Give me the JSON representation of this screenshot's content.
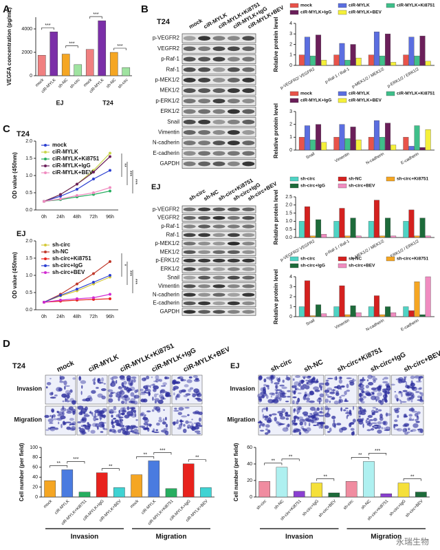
{
  "panel_labels": [
    "A",
    "B",
    "C",
    "D"
  ],
  "blots": [
    {
      "cell_line": "T24",
      "lanes": [
        "mock",
        "ciR-MYLK",
        "ciR-MYLK+Ki8751",
        "ciR-MYLK+IgG",
        "ciR-MYLK+BEV"
      ],
      "proteins": [
        "p-VEGFR2",
        "VEGFR2",
        "p-Raf-1",
        "Raf-1",
        "p-MEK1/2",
        "MEK1/2",
        "p-ERK1/2",
        "ERK1/2",
        "Snail",
        "Vimentin",
        "N-cadherin",
        "E-cadherin",
        "GAPDH"
      ]
    },
    {
      "cell_line": "EJ",
      "lanes": [
        "sh-circ",
        "sh-NC",
        "sh-circ+Ki8751",
        "sh-circ+IgG",
        "sh-circ+BEV"
      ],
      "proteins": [
        "p-VEGFR2",
        "VEGFR2",
        "p-Raf-1",
        "Raf-1",
        "p-MEK1/2",
        "MEK1/2",
        "p-ERK1/2",
        "ERK1/2",
        "Snail",
        "Vimentin",
        "N-cadherin",
        "E-cadherin",
        "GAPDH"
      ]
    }
  ],
  "assays": [
    {
      "cell_line": "T24",
      "lanes": [
        "mock",
        "ciR-MYLK",
        "ciR-MYLK+Ki8751",
        "ciR-MYLK+IgG",
        "ciR-MYLK+BEV"
      ],
      "rows": [
        "Invasion",
        "Migration"
      ]
    },
    {
      "cell_line": "EJ",
      "lanes": [
        "sh-circ",
        "sh-NC",
        "sh-circ+Ki8751",
        "sh-circ+IgG",
        "sh-circ+BEV"
      ],
      "rows": [
        "Invasion",
        "Migration"
      ]
    }
  ],
  "watermark": "永瑞生物",
  "chart_data": [
    {
      "type": "bar",
      "ylabel": "VEGFA concentration (pg/mL)",
      "categories": [
        "mock",
        "ciR-MYLK",
        "sh-NC",
        "sh-circ",
        "mock",
        "ciR-MYLK",
        "sh-NC",
        "sh-circ"
      ],
      "values": [
        1750,
        3750,
        1850,
        950,
        2250,
        4700,
        2000,
        700
      ],
      "colors": [
        "#f08080",
        "#7b2fa8",
        "#f5a623",
        "#9fe3a0",
        "#f08080",
        "#7b2fa8",
        "#f5a623",
        "#9fe3a0"
      ],
      "groups": [
        "EJ",
        "T24"
      ],
      "annotations": [
        "***",
        "***",
        "***",
        "***"
      ],
      "ylim": [
        0,
        5000
      ],
      "yticks": [
        0,
        2000,
        4000
      ]
    },
    {
      "type": "bar",
      "ylabel": "Relative protein level",
      "categories": [
        "p-VEGFR2/ VEGFR2",
        "p-Raf-1 / Raf-1",
        "p-MEK1/2 / MEK1/2",
        "p-ERK1/2 / ERK1/2"
      ],
      "series": [
        {
          "name": "mock",
          "color": "#e8534a",
          "values": [
            1.0,
            1.0,
            1.0,
            1.0
          ]
        },
        {
          "name": "ciR-MYLK",
          "color": "#5b6ee0",
          "values": [
            2.7,
            2.1,
            3.2,
            2.7
          ]
        },
        {
          "name": "ciR-MYLK+Ki8751",
          "color": "#3fbf8a",
          "values": [
            0.9,
            0.5,
            0.9,
            0.9
          ]
        },
        {
          "name": "ciR-MYLK+IgG",
          "color": "#6b1f5a",
          "values": [
            2.9,
            2.0,
            3.0,
            2.8
          ]
        },
        {
          "name": "ciR-MYLK+BEV",
          "color": "#f5f03a",
          "values": [
            0.5,
            0.7,
            0.3,
            0.4
          ]
        }
      ],
      "ylim": [
        0,
        4
      ],
      "yticks": [
        0,
        1,
        2,
        3,
        4
      ]
    },
    {
      "type": "bar",
      "ylabel": "Relative protein level",
      "categories": [
        "Snail",
        "Vimentin",
        "N-cadherin",
        "E-cadherin"
      ],
      "series": [
        {
          "name": "mock",
          "color": "#e8534a",
          "values": [
            1.0,
            1.0,
            1.0,
            1.0
          ]
        },
        {
          "name": "ciR-MYLK",
          "color": "#5b6ee0",
          "values": [
            1.9,
            2.0,
            2.3,
            0.3
          ]
        },
        {
          "name": "ciR-MYLK+Ki8751",
          "color": "#3fbf8a",
          "values": [
            0.8,
            0.9,
            1.0,
            1.9
          ]
        },
        {
          "name": "ciR-MYLK+IgG",
          "color": "#6b1f5a",
          "values": [
            2.0,
            1.8,
            2.1,
            0.2
          ]
        },
        {
          "name": "ciR-MYLK+BEV",
          "color": "#f5f03a",
          "values": [
            0.6,
            0.8,
            0.4,
            1.6
          ]
        }
      ],
      "ylim": [
        0,
        3
      ],
      "yticks": [
        0,
        1,
        2,
        3
      ]
    },
    {
      "type": "bar",
      "ylabel": "Relative protein level",
      "categories": [
        "p-VEGFR2/ VEGFR2",
        "p-Raf-1 / Raf-1",
        "p-MEK1/2 / MEK1/2",
        "p-ERK1/2 / ERK1/2"
      ],
      "series": [
        {
          "name": "sh-circ",
          "color": "#4fd3c4",
          "values": [
            1.0,
            1.0,
            1.0,
            1.0
          ]
        },
        {
          "name": "sh-NC",
          "color": "#d4211f",
          "values": [
            1.9,
            1.8,
            2.3,
            1.7
          ]
        },
        {
          "name": "sh-circ+Ki8751",
          "color": "#f5a623",
          "values": [
            0.1,
            0.1,
            0.1,
            0.1
          ]
        },
        {
          "name": "sh-circ+IgG",
          "color": "#1d6b3a",
          "values": [
            1.1,
            1.2,
            1.2,
            1.2
          ]
        },
        {
          "name": "sh-circ+BEV",
          "color": "#f08cc0",
          "values": [
            0.2,
            0.1,
            0.1,
            0.1
          ]
        }
      ],
      "ylim": [
        0,
        2.5
      ],
      "yticks": [
        {
          "value": 0,
          "label": "0.0"
        },
        0.5,
        {
          "value": 1,
          "label": "1.0"
        },
        1.5,
        {
          "value": 2,
          "label": "2.0"
        },
        2.5
      ]
    },
    {
      "type": "bar",
      "ylabel": "Relative protein level",
      "categories": [
        "Snail",
        "Vimentin",
        "N-cadherin",
        "E-cadherin"
      ],
      "series": [
        {
          "name": "sh-circ",
          "color": "#4fd3c4",
          "values": [
            1.0,
            1.0,
            1.0,
            1.0
          ]
        },
        {
          "name": "sh-NC",
          "color": "#d4211f",
          "values": [
            3.6,
            3.1,
            2.1,
            0.6
          ]
        },
        {
          "name": "sh-circ+Ki8751",
          "color": "#f5a623",
          "values": [
            0.1,
            0.2,
            0.2,
            3.5
          ]
        },
        {
          "name": "sh-circ+IgG",
          "color": "#1d6b3a",
          "values": [
            1.2,
            1.1,
            1.0,
            0.2
          ]
        },
        {
          "name": "sh-circ+BEV",
          "color": "#f08cc0",
          "values": [
            0.3,
            0.4,
            0.4,
            4.0
          ]
        }
      ],
      "ylim": [
        0,
        4
      ],
      "yticks": [
        0,
        1,
        2,
        3,
        4
      ]
    },
    {
      "type": "line",
      "title": "T24",
      "ylabel": "OD value (450nm)",
      "categories": [
        "0h",
        "24h",
        "48h",
        "72h",
        "96h"
      ],
      "series": [
        {
          "name": "mock",
          "color": "#2b3fd1",
          "values": [
            0.25,
            0.4,
            0.6,
            0.9,
            1.15
          ]
        },
        {
          "name": "ciR-MYLK",
          "color": "#c8d64a",
          "values": [
            0.25,
            0.45,
            0.75,
            1.15,
            1.65
          ]
        },
        {
          "name": "ciR-MYLK+Ki8751",
          "color": "#27ae60",
          "values": [
            0.25,
            0.3,
            0.38,
            0.45,
            0.55
          ]
        },
        {
          "name": "ciR-MYLK+IgG",
          "color": "#6b1f5a",
          "values": [
            0.25,
            0.45,
            0.75,
            1.1,
            1.55
          ]
        },
        {
          "name": "ciR-MYLK+BEV",
          "color": "#f08cc0",
          "values": [
            0.25,
            0.32,
            0.42,
            0.5,
            0.65
          ]
        }
      ],
      "annotations": [
        "**",
        "***",
        "***"
      ],
      "ylim": [
        0,
        2
      ],
      "yticks": [
        {
          "value": 0,
          "label": "0.0"
        },
        0.5,
        {
          "value": 1,
          "label": "1.0"
        },
        1.5,
        {
          "value": 2,
          "label": "2.0"
        }
      ]
    },
    {
      "type": "line",
      "title": "EJ",
      "ylabel": "OD value (450nm)",
      "categories": [
        "0h",
        "24h",
        "48h",
        "72h",
        "96h"
      ],
      "series": [
        {
          "name": "sh-circ",
          "color": "#d4c93a",
          "values": [
            0.22,
            0.4,
            0.55,
            0.75,
            0.95
          ]
        },
        {
          "name": "sh-NC",
          "color": "#c0392b",
          "values": [
            0.22,
            0.45,
            0.75,
            1.05,
            1.4
          ]
        },
        {
          "name": "sh-circ+Ki8751",
          "color": "#e8221d",
          "values": [
            0.22,
            0.25,
            0.28,
            0.3,
            0.32
          ]
        },
        {
          "name": "sh-circ+IgG",
          "color": "#2b3fd1",
          "values": [
            0.22,
            0.42,
            0.6,
            0.8,
            1.0
          ]
        },
        {
          "name": "sh-circ+BEV",
          "color": "#d12bd1",
          "values": [
            0.22,
            0.28,
            0.32,
            0.35,
            0.45
          ]
        }
      ],
      "annotations": [
        "*",
        "***",
        "***"
      ],
      "ylim": [
        0,
        2
      ],
      "yticks": [
        {
          "value": 0,
          "label": "0.0"
        },
        0.5,
        {
          "value": 1,
          "label": "1.0"
        },
        1.5,
        {
          "value": 2,
          "label": "2.0"
        }
      ]
    },
    {
      "type": "bar",
      "ylabel": "Cell number (per field)",
      "categories": [
        "mock",
        "ciR-MYLK",
        "ciR-MYLK+Ki8751",
        "ciR-MYLK+IgG",
        "ciR-MYLK+BEV",
        "mock",
        "ciR-MYLK",
        "ciR-MYLK+Ki8751",
        "ciR-MYLK+IgG",
        "ciR-MYLK+BEV"
      ],
      "values": [
        33,
        55,
        10,
        49,
        19,
        45,
        73,
        17,
        67,
        19
      ],
      "colors": [
        "#f5a623",
        "#4a7be0",
        "#27ae60",
        "#e8221d",
        "#3fd3d3",
        "#f5a623",
        "#4a7be0",
        "#27ae60",
        "#e8221d",
        "#3fd3d3"
      ],
      "groups": [
        "Invasion",
        "Migration"
      ],
      "annotations": [
        "**",
        "***",
        "**",
        "**",
        "***",
        "**"
      ],
      "ylim": [
        0,
        100
      ],
      "yticks": [
        0,
        20,
        40,
        60,
        80,
        100
      ]
    },
    {
      "type": "bar",
      "ylabel": "Cell number (per field)",
      "categories": [
        "sh-circ",
        "sh-NC",
        "sh-circ+Ki8751",
        "sh-circ+IgG",
        "sh-circ+BEV",
        "sh-circ",
        "sh-NC",
        "sh-circ+Ki8751",
        "sh-circ+IgG",
        "sh-circ+BEV"
      ],
      "values": [
        19,
        36,
        7,
        17,
        5,
        19,
        43,
        4,
        17,
        6
      ],
      "colors": [
        "#f08ca0",
        "#aef0f0",
        "#8a3fd1",
        "#f5e03a",
        "#1d6b3a",
        "#f08ca0",
        "#aef0f0",
        "#8a3fd1",
        "#f5e03a",
        "#1d6b3a"
      ],
      "groups": [
        "Invasion",
        "Migration"
      ],
      "annotations": [
        "**",
        "**",
        "**",
        "**",
        "***",
        "**"
      ],
      "ylim": [
        0,
        60
      ],
      "yticks": [
        0,
        20,
        40,
        60
      ]
    }
  ]
}
